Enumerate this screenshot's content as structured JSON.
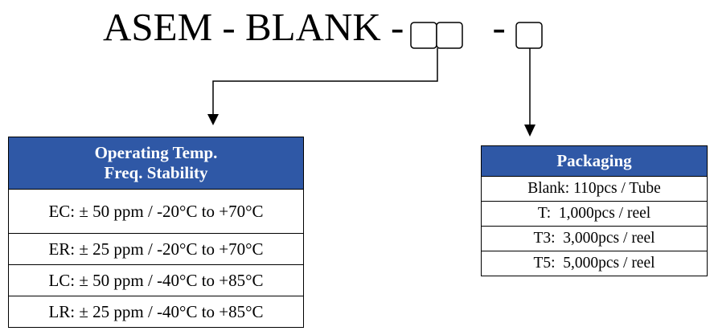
{
  "part_code": {
    "prefix": "ASEM - BLANK - ",
    "separator": "-"
  },
  "temp_table": {
    "header_line1": "Operating Temp.",
    "header_line2": "Freq. Stability",
    "rows": [
      "EC: ± 50 ppm / -20°C to +70°C",
      "ER: ± 25 ppm / -20°C to +70°C",
      "LC: ± 50 ppm / -40°C to +85°C",
      "LR: ± 25 ppm / -40°C to +85°C"
    ]
  },
  "pack_table": {
    "header": "Packaging",
    "rows": [
      "Blank: 110pcs / Tube",
      "T:  1,000pcs / reel",
      "T3:  3,000pcs / reel",
      "T5:  5,000pcs / reel"
    ]
  },
  "colors": {
    "header_fill": "#2f58a6",
    "header_text": "#ffffff",
    "line": "#000000"
  }
}
